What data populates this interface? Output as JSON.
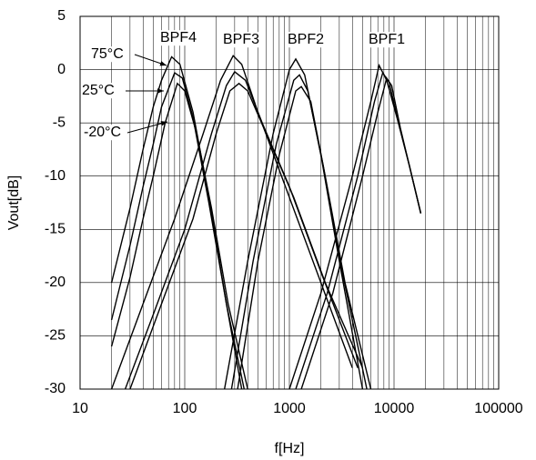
{
  "chart_data": {
    "type": "line",
    "x_label": "f[Hz]",
    "y_label": "Vout[dB]",
    "xscale": "log",
    "grid": true,
    "xlim": [
      10,
      100000
    ],
    "ylim": [
      -30,
      5
    ],
    "xticks": [
      10,
      100,
      1000,
      10000,
      100000
    ],
    "xminorticks": [
      20,
      30,
      40,
      50,
      60,
      70,
      80,
      90,
      200,
      300,
      400,
      500,
      600,
      700,
      800,
      900,
      2000,
      3000,
      4000,
      5000,
      6000,
      7000,
      8000,
      9000,
      20000,
      30000,
      40000,
      50000,
      60000,
      70000,
      80000,
      90000
    ],
    "yticks": [
      5,
      0,
      -5,
      -10,
      -15,
      -20,
      -25,
      -30
    ],
    "annotations": [
      "BPF4",
      "BPF3",
      "BPF2",
      "BPF1",
      "75°C",
      "25°C",
      "-20°C"
    ],
    "series": [
      {
        "color": "#000000",
        "x": [
          20,
          30,
          40,
          50,
          60,
          75,
          90,
          120,
          170,
          250,
          350
        ],
        "values": [
          -20,
          -13,
          -7.5,
          -3.5,
          -1,
          1.2,
          0.5,
          -4,
          -12,
          -22,
          -30
        ]
      },
      {
        "color": "#000000",
        "x": [
          20,
          30,
          40,
          50,
          60,
          80,
          95,
          120,
          170,
          250,
          370
        ],
        "values": [
          -23.5,
          -16.5,
          -11,
          -7,
          -3.5,
          -0.3,
          -0.8,
          -4.5,
          -12.5,
          -22,
          -30
        ]
      },
      {
        "color": "#000000",
        "x": [
          20,
          30,
          40,
          50,
          65,
          85,
          100,
          130,
          180,
          260,
          400
        ],
        "values": [
          -26,
          -19.5,
          -14,
          -10,
          -5,
          -1.3,
          -2,
          -6,
          -13,
          -22,
          -30
        ]
      },
      {
        "color": "#000000",
        "x": [
          20,
          40,
          80,
          150,
          220,
          290,
          350,
          500,
          1000,
          2000,
          4000
        ],
        "values": [
          -30,
          -22,
          -14,
          -6,
          -1,
          1.3,
          0.5,
          -4,
          -12,
          -20,
          -28
        ]
      },
      {
        "color": "#000000",
        "x": [
          27,
          50,
          100,
          180,
          250,
          300,
          380,
          550,
          1000,
          2000,
          4500
        ],
        "values": [
          -30,
          -23,
          -15,
          -6,
          -1.5,
          -0.2,
          -1,
          -5,
          -11,
          -19,
          -28
        ]
      },
      {
        "color": "#000000",
        "x": [
          30,
          60,
          120,
          200,
          270,
          330,
          400,
          600,
          1100,
          2200,
          5000
        ],
        "values": [
          -30,
          -22,
          -14,
          -6,
          -2,
          -1.3,
          -2,
          -6,
          -12,
          -20,
          -28
        ]
      },
      {
        "color": "#000000",
        "x": [
          240,
          400,
          700,
          1000,
          1150,
          1400,
          2000,
          3000,
          5000
        ],
        "values": [
          -30,
          -18,
          -6,
          0,
          1,
          -0.5,
          -8,
          -18,
          -30
        ]
      },
      {
        "color": "#000000",
        "x": [
          280,
          450,
          750,
          1100,
          1250,
          1500,
          2100,
          3200,
          5500
        ],
        "values": [
          -30,
          -18,
          -7,
          -1,
          -0.5,
          -2,
          -9,
          -19,
          -30
        ]
      },
      {
        "color": "#000000",
        "x": [
          320,
          500,
          800,
          1150,
          1300,
          1600,
          2200,
          3400,
          6000
        ],
        "values": [
          -30,
          -18,
          -8,
          -2,
          -1.6,
          -3,
          -10,
          -20,
          -30
        ]
      },
      {
        "color": "#000000",
        "x": [
          1000,
          2000,
          4000,
          6000,
          7200,
          8500,
          11000,
          14000,
          18000
        ],
        "values": [
          -30,
          -21,
          -10,
          -3,
          0.4,
          -1,
          -5,
          -9,
          -13.5
        ]
      },
      {
        "color": "#000000",
        "x": [
          1150,
          2300,
          4500,
          6500,
          7800,
          9000,
          11000,
          14000,
          18000
        ],
        "values": [
          -30,
          -21,
          -10,
          -3,
          -0.3,
          -1.2,
          -5,
          -9,
          -13.5
        ]
      },
      {
        "color": "#000000",
        "x": [
          1300,
          2600,
          5000,
          7000,
          8500,
          9500,
          11500,
          14000,
          18000
        ],
        "values": [
          -30,
          -21,
          -10,
          -4,
          -0.8,
          -1.5,
          -5.5,
          -9,
          -13.5
        ]
      }
    ]
  }
}
